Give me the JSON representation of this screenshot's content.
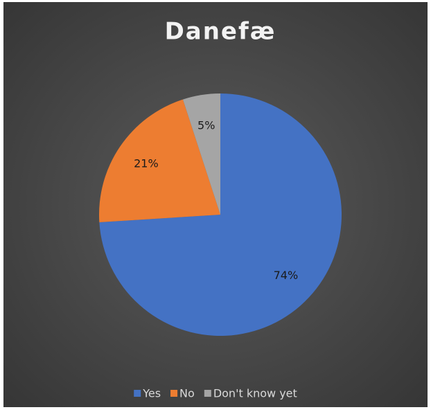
{
  "chart_data": {
    "type": "pie",
    "title": "Danefæ",
    "categories": [
      "Yes",
      "No",
      "Don't know yet"
    ],
    "values": [
      74,
      21,
      5
    ],
    "value_labels": [
      "74%",
      "21%",
      "5%"
    ],
    "colors": [
      "#4472c4",
      "#ed7d31",
      "#a5a5a5"
    ],
    "legend": "bottom"
  }
}
